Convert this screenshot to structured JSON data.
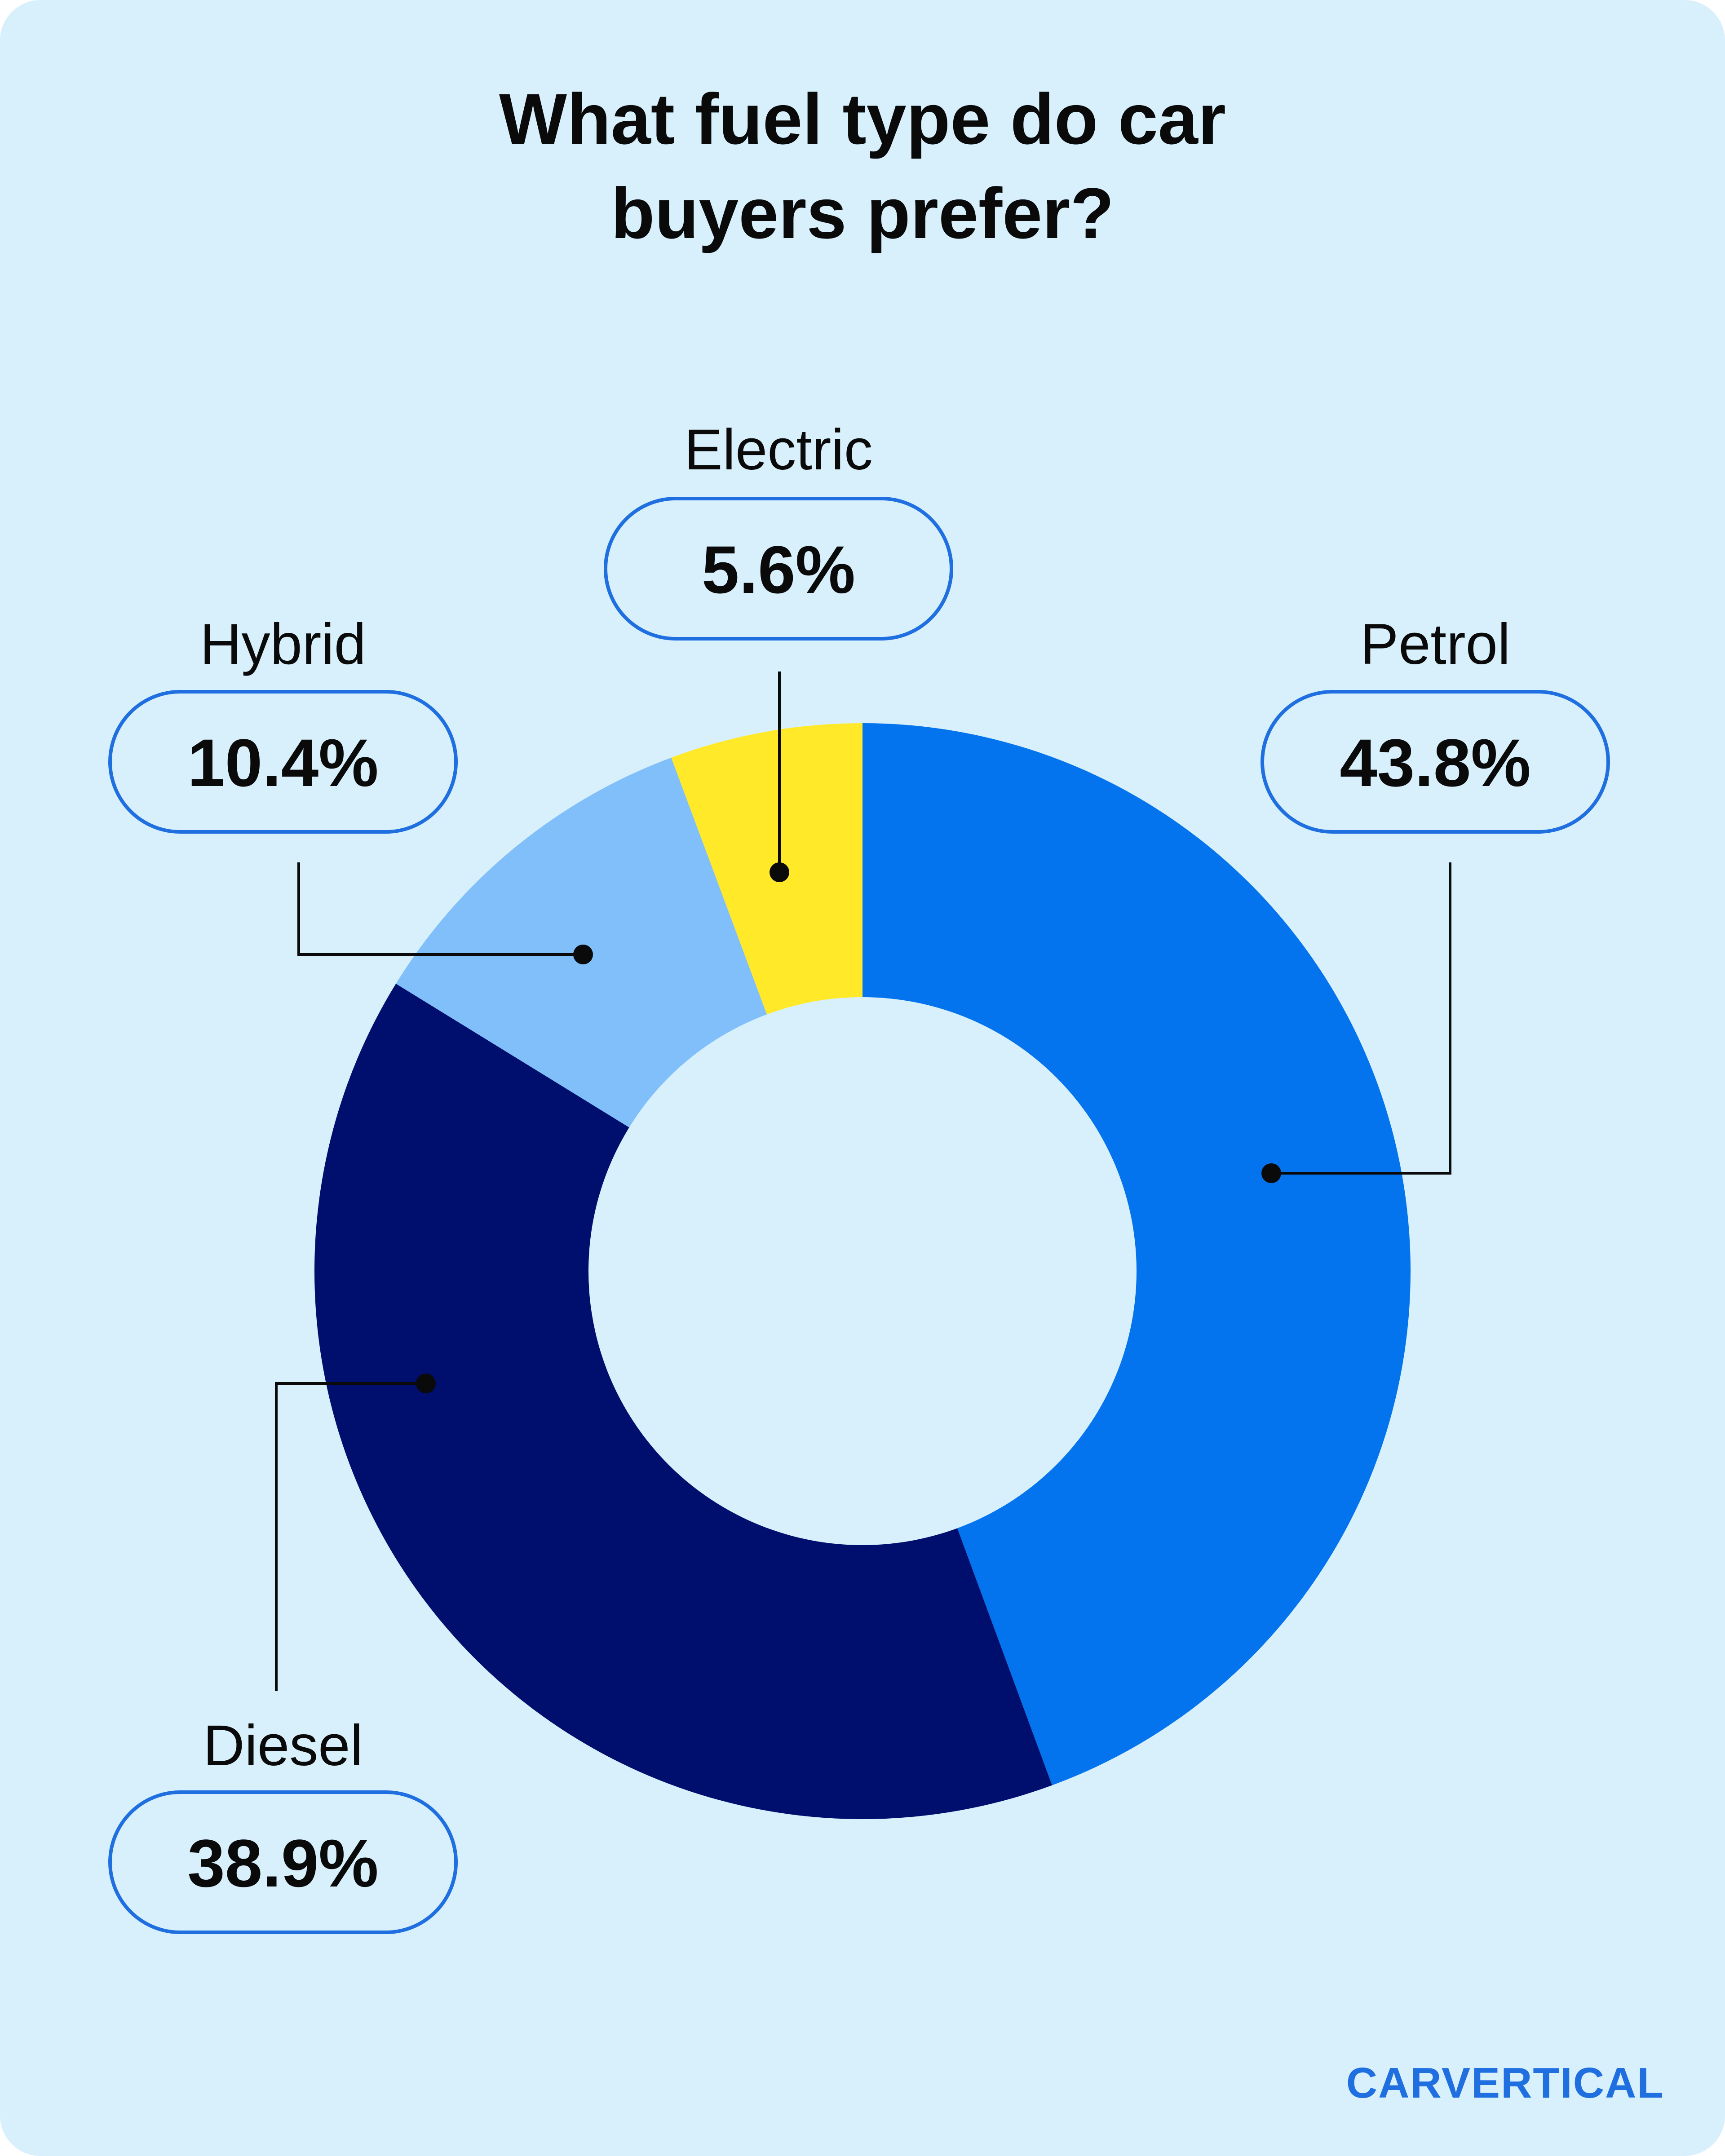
{
  "colors": {
    "background": "#D8F0FC",
    "petrol": "#0474EE",
    "diesel": "#000F6E",
    "hybrid": "#80BFFA",
    "electric": "#FFE928",
    "outline": "#1F6FE0",
    "brand": "#1F6FE0"
  },
  "chart_data": {
    "type": "pie",
    "donut": true,
    "title": "What fuel type do car buyers prefer?",
    "title_lines": [
      "What fuel type do car",
      "buyers prefer?"
    ],
    "categories": [
      "Petrol",
      "Diesel",
      "Hybrid",
      "Electric"
    ],
    "values": [
      43.8,
      38.9,
      10.4,
      5.6
    ],
    "value_labels": [
      "43.8%",
      "38.9%",
      "10.4%",
      "5.6%"
    ],
    "unit": "%",
    "legend": "none"
  },
  "brand": {
    "logo_text": "CARVERTICAL",
    "logo_parts": [
      "CAR",
      "VERTICAL"
    ]
  }
}
